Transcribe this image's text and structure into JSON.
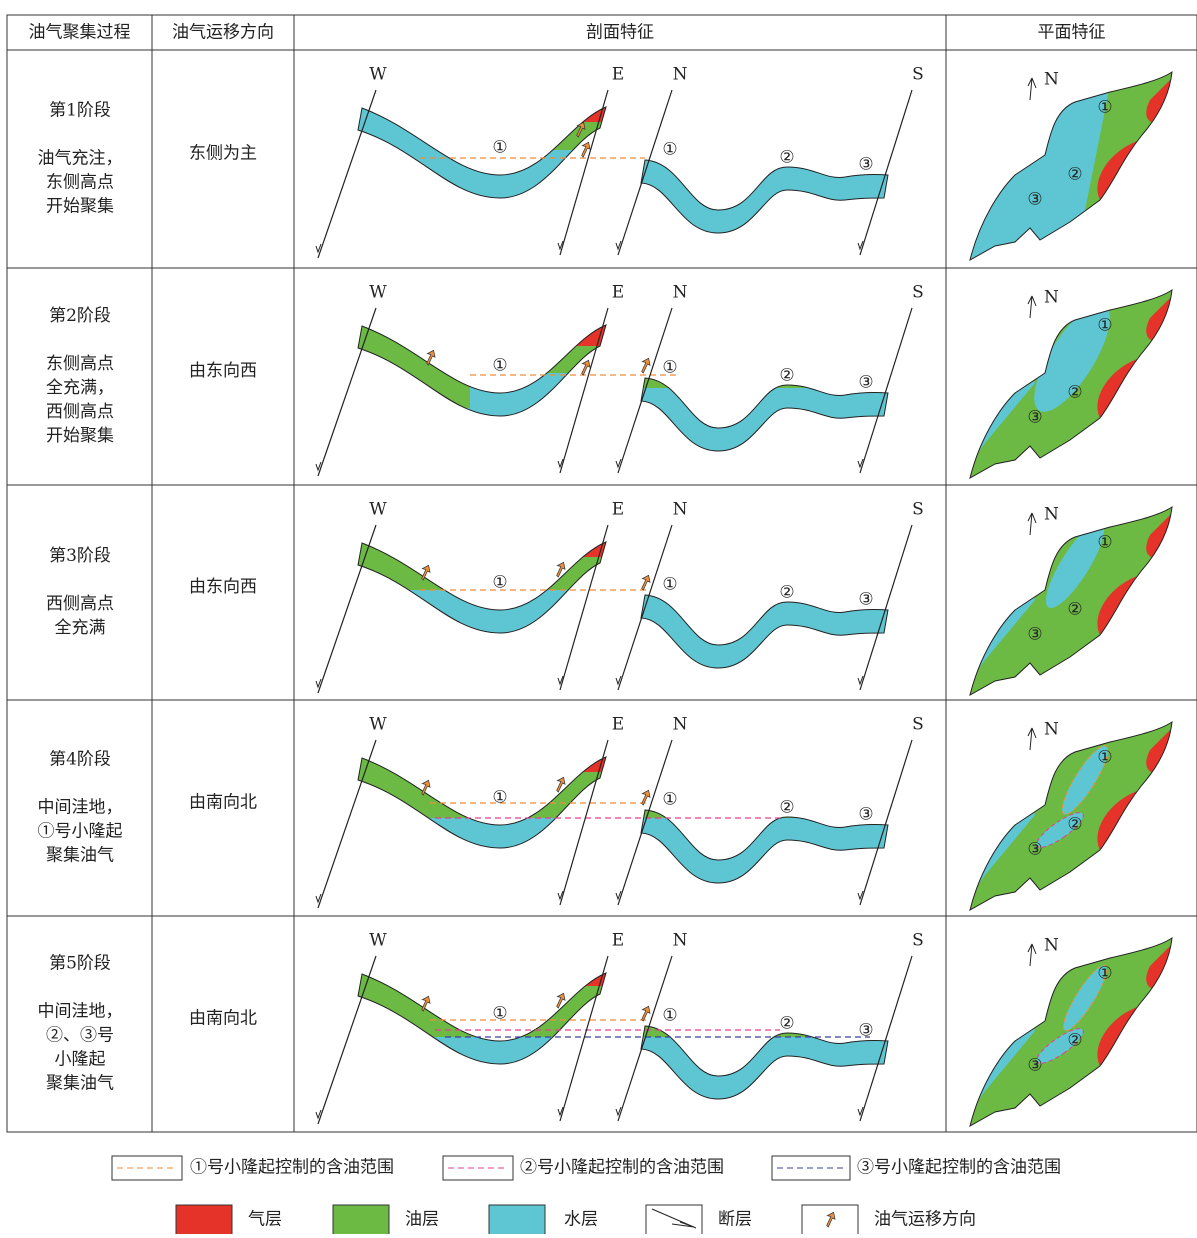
{
  "table": {
    "header": [
      "油气聚集过程",
      "油气运移方向",
      "剖面特征",
      "平面特征"
    ],
    "rows": [
      {
        "stage": "第1阶段",
        "desc": [
          "油气充注，",
          "东侧高点",
          "开始聚集"
        ],
        "direction": "东侧为主"
      },
      {
        "stage": "第2阶段",
        "desc": [
          "东侧高点",
          "全充满，",
          "西侧高点",
          "开始聚集"
        ],
        "direction": "由东向西"
      },
      {
        "stage": "第3阶段",
        "desc": [
          "西侧高点",
          "全充满"
        ],
        "direction": "由东向西"
      },
      {
        "stage": "第4阶段",
        "desc": [
          "中间洼地，",
          "①号小隆起",
          "聚集油气"
        ],
        "direction": "由南向北"
      },
      {
        "stage": "第5阶段",
        "desc": [
          "中间洼地，",
          "②、③号",
          "小隆起",
          "聚集油气"
        ],
        "direction": "由南向北"
      }
    ]
  },
  "section_labels": [
    "W",
    "E",
    "N",
    "S"
  ],
  "markers": [
    "①",
    "②",
    "③"
  ],
  "plan_north": "N",
  "legend": {
    "lines": [
      "①号小隆起控制的含油范围",
      "②号小隆起控制的含油范围",
      "③号小隆起控制的含油范围"
    ],
    "items": [
      "气层",
      "油层",
      "水层",
      "断层",
      "油气运移方向"
    ]
  }
}
